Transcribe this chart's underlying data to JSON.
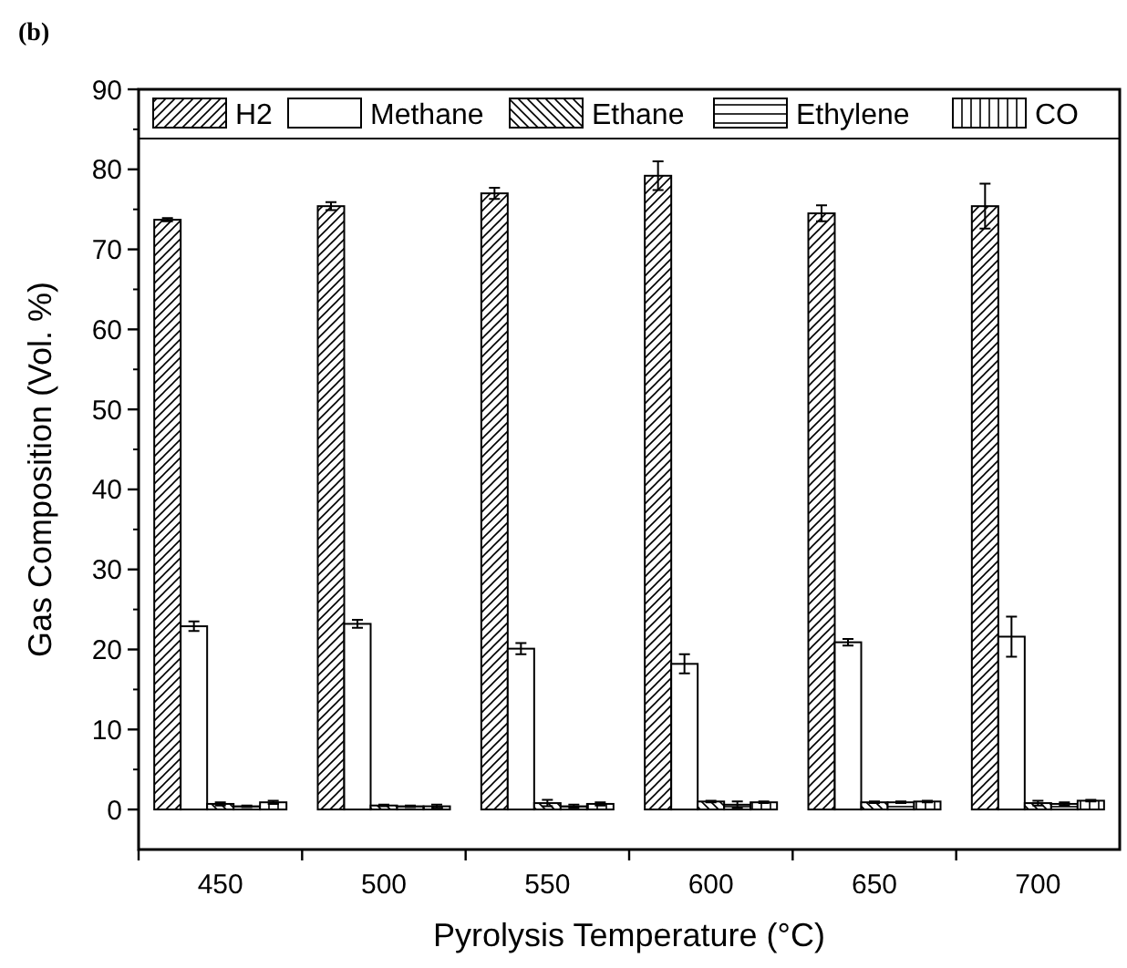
{
  "chart_data": {
    "type": "bar",
    "title": "(b)",
    "xlabel": "Pyrolysis Temperature (°C)",
    "ylabel": "Gas Composition (Vol. %)",
    "categories": [
      "450",
      "500",
      "550",
      "600",
      "650",
      "700"
    ],
    "series": [
      {
        "name": "H2",
        "color": "#000000",
        "values": [
          73.7,
          75.4,
          77.0,
          79.2,
          74.5,
          75.4
        ],
        "errors": [
          0.2,
          0.5,
          0.7,
          1.8,
          1.0,
          2.8
        ]
      },
      {
        "name": "Methane",
        "color": "#000000",
        "values": [
          22.9,
          23.2,
          20.1,
          18.2,
          20.9,
          21.6
        ],
        "errors": [
          0.6,
          0.5,
          0.7,
          1.2,
          0.4,
          2.5
        ]
      },
      {
        "name": "Ethane",
        "color": "#000000",
        "values": [
          0.7,
          0.5,
          0.8,
          1.0,
          0.9,
          0.8
        ],
        "errors": [
          0.2,
          0.1,
          0.4,
          0.1,
          0.1,
          0.3
        ]
      },
      {
        "name": "Ethylene",
        "color": "#000000",
        "values": [
          0.4,
          0.4,
          0.4,
          0.6,
          0.9,
          0.7
        ],
        "errors": [
          0.1,
          0.1,
          0.2,
          0.4,
          0.1,
          0.2
        ]
      },
      {
        "name": "CO",
        "color": "#000000",
        "values": [
          0.9,
          0.4,
          0.7,
          0.9,
          1.0,
          1.1
        ],
        "errors": [
          0.2,
          0.2,
          0.2,
          0.1,
          0.1,
          0.1
        ]
      }
    ],
    "ylim": [
      -5,
      90
    ],
    "yticks": [
      0,
      10,
      20,
      30,
      40,
      50,
      60,
      70,
      80,
      90
    ],
    "legend": "top",
    "grid": false
  }
}
